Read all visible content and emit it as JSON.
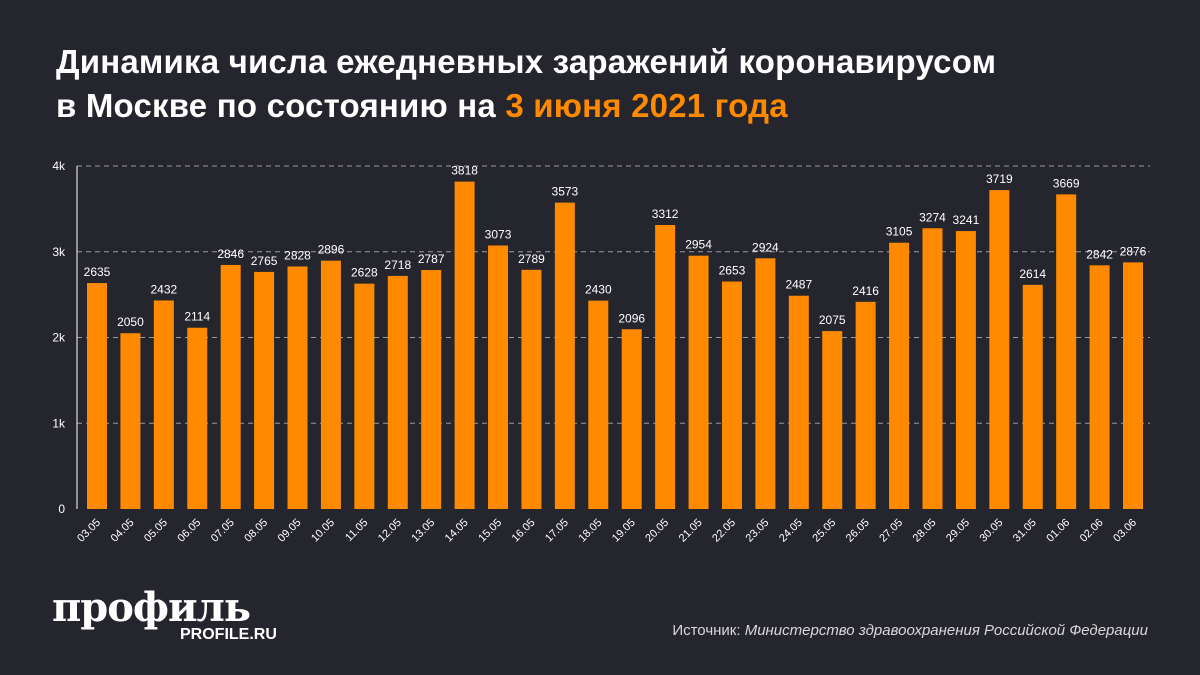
{
  "title": {
    "line1": "Динамика числа ежедневных заражений коронавирусом",
    "line2_prefix": "в Москве по состоянию на ",
    "line2_highlight": "3 июня 2021 года"
  },
  "colors": {
    "bar": "#ff8a00",
    "background": "#25252d",
    "highlight": "#ff8a00"
  },
  "chart_data": {
    "type": "bar",
    "title": "Динамика числа ежедневных заражений коронавирусом в Москве по состоянию на 3 июня 2021 года",
    "xlabel": "",
    "ylabel": "",
    "ylim": [
      0,
      4000
    ],
    "yticks": [
      0,
      1000,
      2000,
      3000,
      4000
    ],
    "ytick_labels": [
      "0",
      "1k",
      "2k",
      "3k",
      "4k"
    ],
    "grid": true,
    "categories": [
      "03.05",
      "04.05",
      "05.05",
      "06.05",
      "07.05",
      "08.05",
      "09.05",
      "10.05",
      "11.05",
      "12.05",
      "13.05",
      "14.05",
      "15.05",
      "16.05",
      "17.05",
      "18.05",
      "19.05",
      "20.05",
      "21.05",
      "22.05",
      "23.05",
      "24.05",
      "25.05",
      "26.05",
      "27.05",
      "28.05",
      "29.05",
      "30.05",
      "31.05",
      "01.06",
      "02.06",
      "03.06"
    ],
    "values": [
      2635,
      2050,
      2432,
      2114,
      2846,
      2765,
      2828,
      2896,
      2628,
      2718,
      2787,
      3818,
      3073,
      2789,
      3573,
      2430,
      2096,
      3312,
      2954,
      2653,
      2924,
      2487,
      2075,
      2416,
      3105,
      3274,
      3241,
      3719,
      2614,
      3669,
      2842,
      2876
    ]
  },
  "logo": {
    "main": "профиль",
    "sub": "PROFILE.RU"
  },
  "source": {
    "label": "Источник: ",
    "value": "Министерство здравоохранения Российской Федерации"
  }
}
